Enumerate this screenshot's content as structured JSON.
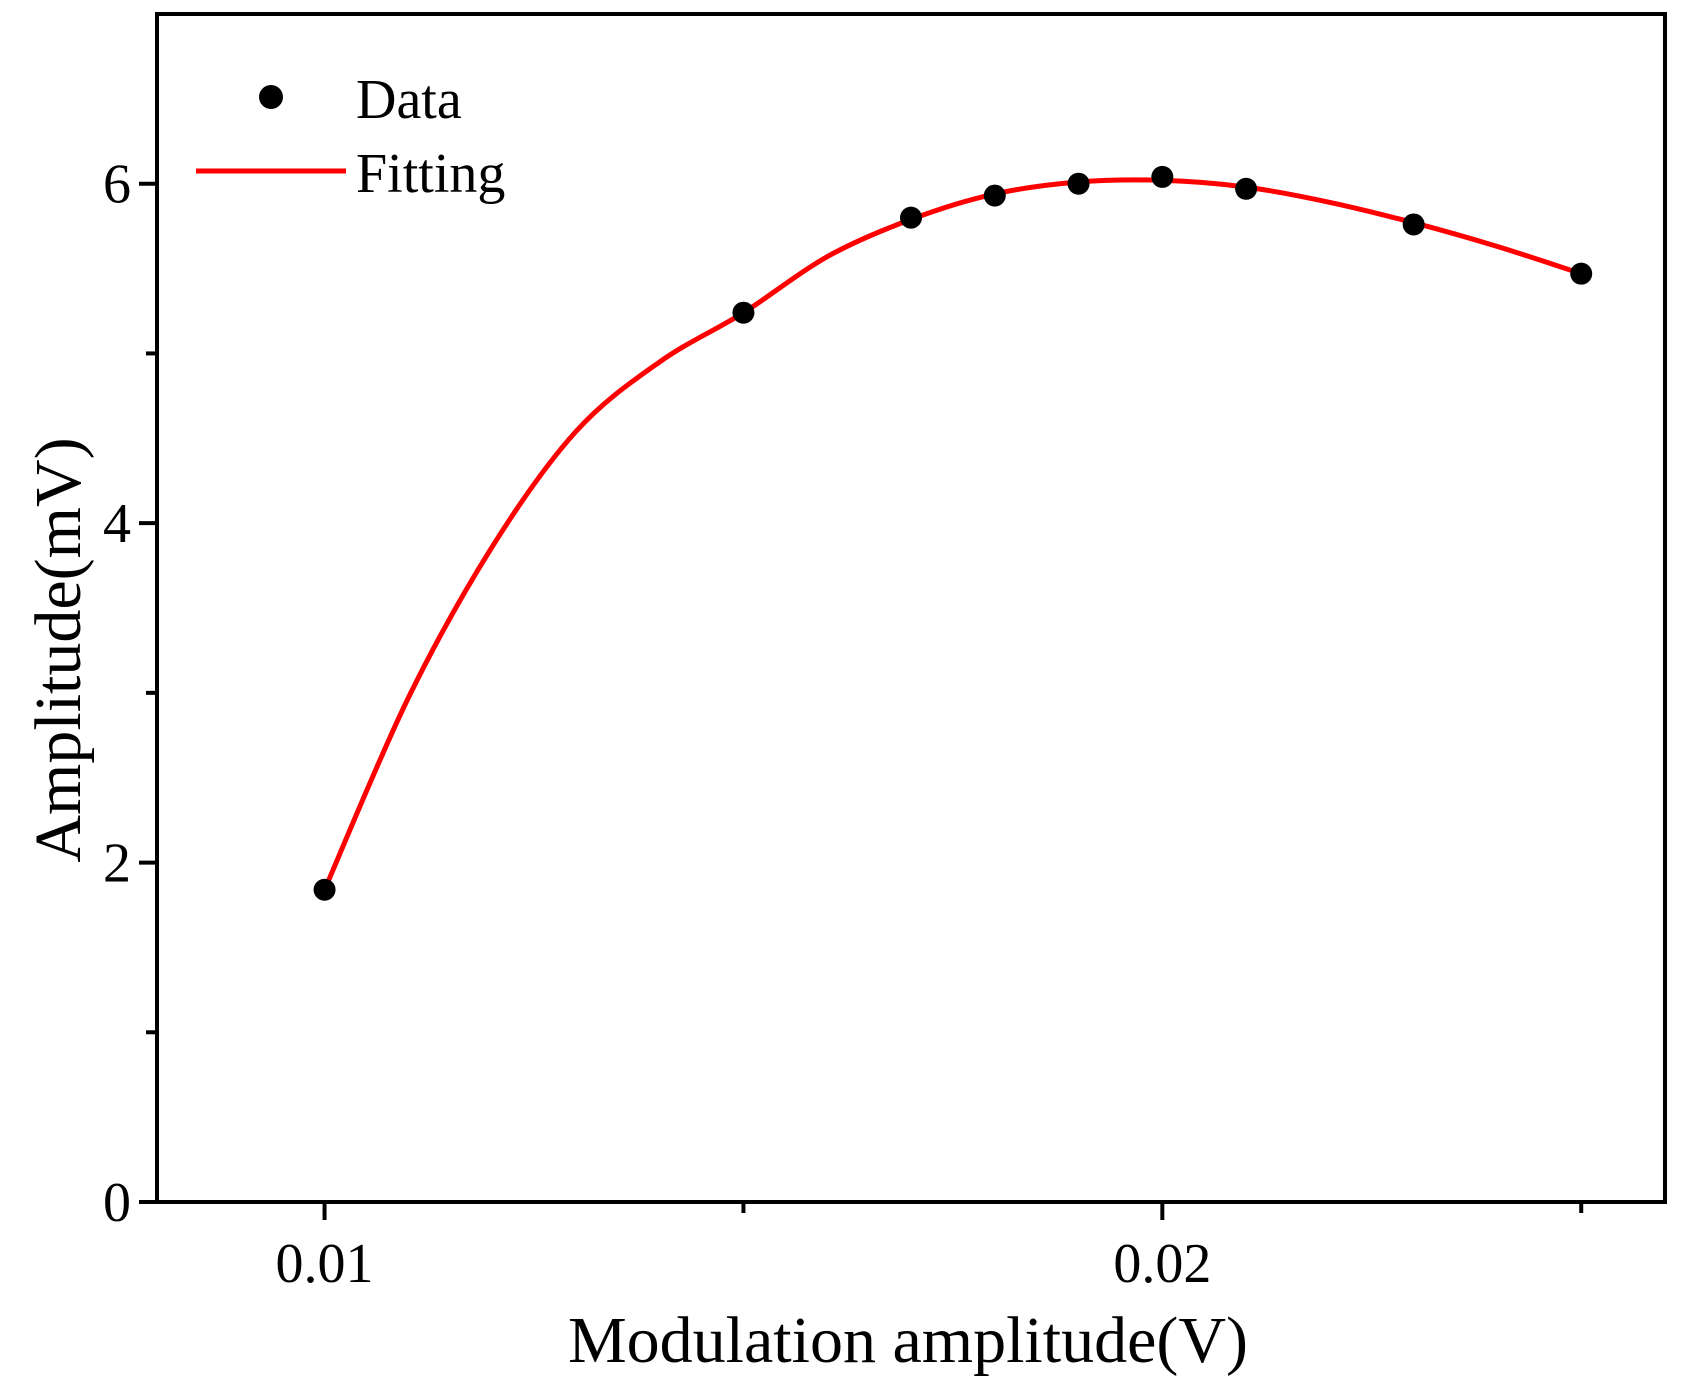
{
  "colors": {
    "axis": "#000000",
    "data_point": "#000000",
    "fit_line": "#ff0000"
  },
  "chart_data": {
    "type": "scatter",
    "title": "",
    "xlabel": "Modulation amplitude(V)",
    "ylabel": "Amplitude(mV)",
    "xlim": [
      0.008,
      0.026
    ],
    "ylim": [
      0,
      7
    ],
    "grid": false,
    "x_major_ticks": [
      {
        "value": 0.01,
        "label": "0.01"
      },
      {
        "value": 0.02,
        "label": "0.02"
      }
    ],
    "x_minor_ticks": [
      0.015,
      0.025
    ],
    "y_major_ticks": [
      {
        "value": 0,
        "label": "0"
      },
      {
        "value": 2,
        "label": "2"
      },
      {
        "value": 4,
        "label": "4"
      },
      {
        "value": 6,
        "label": "6"
      }
    ],
    "y_minor_ticks": [
      1,
      3,
      5
    ],
    "legend": {
      "position": "top-left",
      "entries": [
        {
          "name": "Data",
          "kind": "marker"
        },
        {
          "name": "Fitting",
          "kind": "line"
        }
      ]
    },
    "series": [
      {
        "name": "Data",
        "kind": "scatter",
        "x": [
          0.01,
          0.015,
          0.017,
          0.018,
          0.019,
          0.02,
          0.021,
          0.023,
          0.025
        ],
        "y": [
          1.84,
          5.24,
          5.8,
          5.93,
          6.0,
          6.04,
          5.97,
          5.76,
          5.47
        ]
      },
      {
        "name": "Fitting",
        "kind": "line",
        "x": [
          0.01,
          0.011,
          0.012,
          0.013,
          0.014,
          0.015,
          0.016,
          0.017,
          0.018,
          0.019,
          0.02,
          0.021,
          0.022,
          0.023,
          0.024,
          0.025
        ],
        "y": [
          1.84,
          2.97,
          3.86,
          4.54,
          4.95,
          5.24,
          5.57,
          5.79,
          5.94,
          6.01,
          6.02,
          5.98,
          5.89,
          5.77,
          5.63,
          5.47
        ]
      }
    ]
  }
}
